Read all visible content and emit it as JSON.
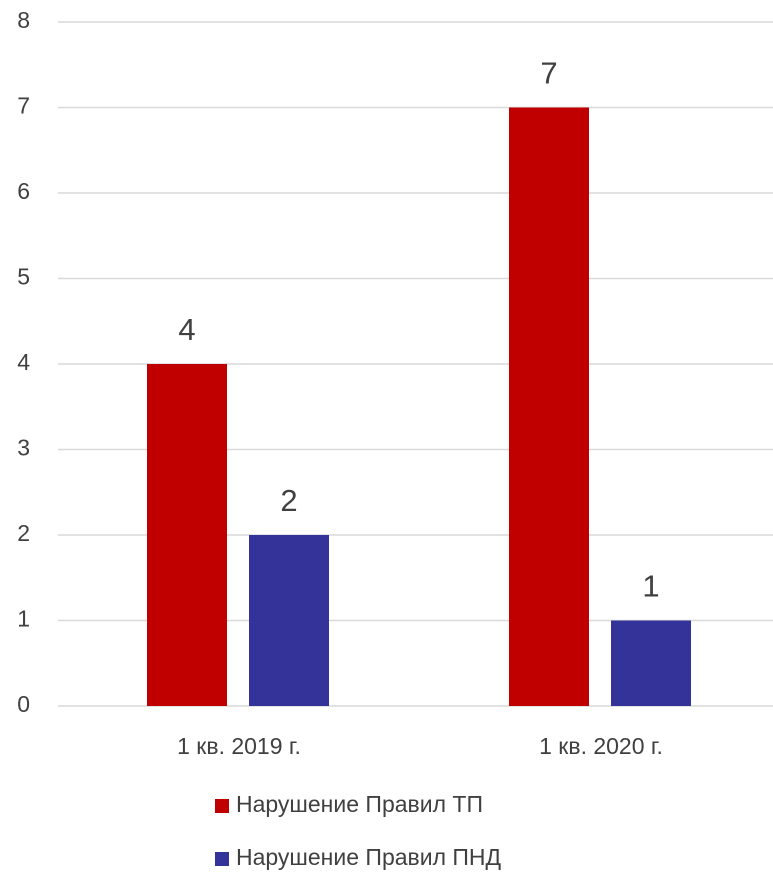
{
  "chart_data": {
    "type": "bar",
    "categories": [
      "1 кв. 2019 г.",
      "1 кв. 2020 г."
    ],
    "series": [
      {
        "name": "Нарушение Правил ТП",
        "color": "#c00000",
        "values": [
          4,
          7
        ]
      },
      {
        "name": "Нарушение Правил ПНД",
        "color": "#333399",
        "values": [
          2,
          1
        ]
      }
    ],
    "ylim": [
      0,
      8
    ],
    "yticks": [
      0,
      1,
      2,
      3,
      4,
      5,
      6,
      7,
      8
    ],
    "grid": true,
    "legend": "bottom"
  }
}
